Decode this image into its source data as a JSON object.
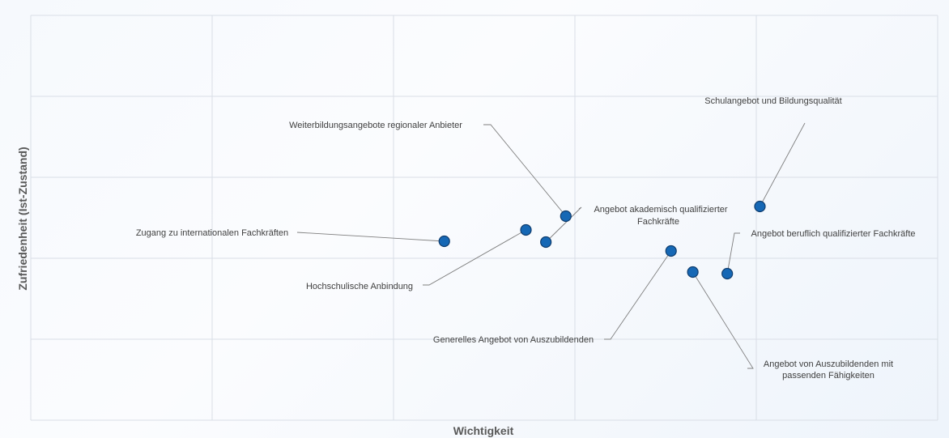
{
  "chart_data": {
    "type": "scatter",
    "title": "",
    "xlabel": "Wichtigkeit",
    "ylabel": "Zufriedenheit (Ist-Zustand)",
    "xlim": [
      0,
      5
    ],
    "ylim": [
      0,
      5
    ],
    "grid": true,
    "legend": "none",
    "colors": {
      "point": "#1668b5",
      "point_stroke": "#0f3d6e",
      "leader": "#7f7f7f",
      "grid": "#d9dee6"
    },
    "points": [
      {
        "label": [
          "Schulangebot und Bildungsqualität"
        ],
        "x": 4.02,
        "y": 2.64
      },
      {
        "label": [
          "Weiterbildungsangebote regionaler Anbieter"
        ],
        "x": 2.95,
        "y": 2.52
      },
      {
        "label": [
          "Angebot akademisch qualifizierter",
          "Fachkräfte"
        ],
        "x": 2.84,
        "y": 2.2
      },
      {
        "label": [
          "Zugang zu internationalen Fachkräften"
        ],
        "x": 2.28,
        "y": 2.21
      },
      {
        "label": [
          "Hochschulische Anbindung"
        ],
        "x": 2.73,
        "y": 2.35
      },
      {
        "label": [
          "Generelles Angebot von Auszubildenden"
        ],
        "x": 3.53,
        "y": 2.09
      },
      {
        "label": [
          "Angebot von Auszubildenden mit",
          "passenden Fähigkeiten"
        ],
        "x": 3.65,
        "y": 1.83
      },
      {
        "label": [
          "Angebot beruflich qualifizierter Fachkräfte"
        ],
        "x": 3.84,
        "y": 1.81
      }
    ]
  }
}
